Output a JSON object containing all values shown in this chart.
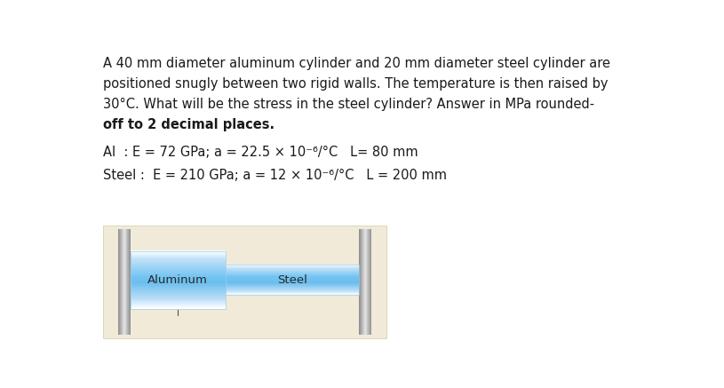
{
  "line1": "A 40 mm diameter aluminum cylinder and 20 mm diameter steel cylinder are",
  "line2": "positioned snugly between two rigid walls. The temperature is then raised by",
  "line3": "30°C. What will be the stress in the steel cylinder? Answer in MPa rounded-",
  "line4": "off to 2 decimal places.",
  "al_line": "Al  : E = 72 GPa; a = 22.5 × 10⁻⁶/°C   L= 80 mm",
  "steel_line": "Steel :  E = 210 GPa; a = 12 × 10⁻⁶/°C   L = 200 mm",
  "al_label": "Aluminum",
  "steel_label": "Steel",
  "bg_color": "#ffffff",
  "text_color": "#1a1a1a",
  "font_size_body": 10.5,
  "font_size_label": 9.5,
  "diagram_bg": "#f2ead8",
  "wall_color_light": "#d0d0d0",
  "wall_color_dark": "#909090",
  "cyl_light": "#e8f6ff",
  "cyl_mid": "#7ec8e8",
  "cyl_dark": "#b8e2f5"
}
